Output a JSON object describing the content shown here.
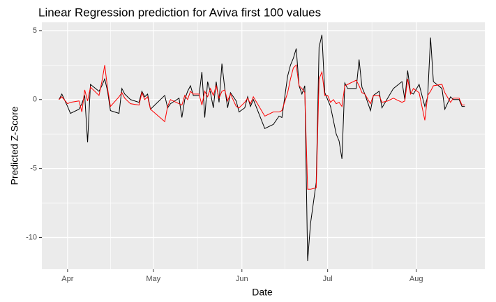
{
  "chart_data": {
    "type": "line",
    "title": "Linear Regression prediction for Aviva first 100 values",
    "x_label": "Date",
    "y_label": "Predicted Z-Score",
    "x": [
      -3,
      -2,
      0,
      1,
      4,
      5,
      6,
      7,
      8,
      11,
      12,
      13,
      14,
      15,
      18,
      19,
      20,
      22,
      25,
      26,
      27,
      28,
      29,
      34,
      35,
      36,
      39,
      40,
      41,
      42,
      43,
      44,
      46,
      47,
      48,
      49,
      50,
      51,
      52,
      53,
      54,
      55,
      56,
      57,
      59,
      60,
      62,
      63,
      64,
      65,
      69,
      72,
      74,
      75,
      77,
      78,
      79,
      80,
      81,
      82,
      83,
      84,
      85,
      87,
      88,
      89,
      90,
      91,
      92,
      93,
      94,
      95,
      96,
      97,
      98,
      101,
      102,
      103,
      104,
      106,
      107,
      109,
      110,
      112,
      114,
      117,
      118,
      119,
      120,
      121,
      123,
      125,
      126,
      127,
      128,
      131,
      132,
      134,
      135,
      137,
      138,
      139
    ],
    "series": [
      {
        "color": "#000000",
        "values": [
          0.0,
          0.4,
          -0.5,
          -1.0,
          -0.7,
          -0.3,
          0.3,
          -3.1,
          1.1,
          0.6,
          1.0,
          1.5,
          0.6,
          -0.8,
          -1.0,
          0.8,
          0.4,
          0.0,
          -0.2,
          0.6,
          0.2,
          0.4,
          -0.7,
          0.3,
          -0.6,
          -0.3,
          0.1,
          -1.3,
          0.0,
          0.6,
          1.0,
          0.3,
          0.3,
          2.0,
          -1.3,
          1.3,
          0.5,
          -0.6,
          1.3,
          -0.2,
          2.6,
          0.8,
          -0.6,
          0.5,
          -0.1,
          -0.9,
          -0.6,
          0.2,
          -0.5,
          0.0,
          -2.1,
          -1.8,
          -1.2,
          -1.3,
          1.7,
          2.5,
          3.0,
          3.7,
          1.0,
          0.4,
          1.0,
          -11.7,
          -9.0,
          -6.0,
          3.8,
          4.7,
          0.5,
          0.0,
          -0.5,
          -1.5,
          -2.5,
          -3.0,
          -4.3,
          1.2,
          0.8,
          0.8,
          2.9,
          0.9,
          0.4,
          -0.8,
          0.3,
          0.6,
          -0.6,
          0.1,
          0.8,
          1.3,
          0.0,
          2.1,
          0.5,
          0.4,
          1.1,
          -0.5,
          0.2,
          4.5,
          1.3,
          0.8,
          -0.7,
          0.2,
          0.0,
          0.0,
          -0.5,
          -0.5
        ]
      },
      {
        "color": "#ff0000",
        "values": [
          0.0,
          0.2,
          -0.3,
          -0.2,
          -0.1,
          -0.9,
          0.7,
          -0.1,
          0.9,
          0.3,
          1.3,
          2.5,
          0.8,
          -0.5,
          0.2,
          0.5,
          0.1,
          -0.3,
          -0.4,
          0.5,
          0.0,
          0.2,
          -0.7,
          -1.6,
          -0.5,
          0.0,
          -0.3,
          -0.4,
          0.3,
          0.0,
          0.6,
          0.4,
          0.4,
          -0.4,
          0.6,
          0.2,
          0.8,
          0.3,
          1.0,
          0.1,
          0.6,
          0.7,
          -0.1,
          0.4,
          -0.5,
          -0.6,
          -0.2,
          0.1,
          -0.3,
          0.2,
          -1.2,
          -0.9,
          -0.9,
          -0.8,
          0.5,
          1.5,
          2.3,
          2.5,
          1.0,
          0.8,
          0.5,
          -6.5,
          -6.5,
          -6.4,
          1.5,
          2.0,
          0.3,
          0.3,
          -0.2,
          0.0,
          -0.3,
          -0.2,
          -0.5,
          1.0,
          1.1,
          1.4,
          1.0,
          0.5,
          0.4,
          -0.3,
          0.3,
          0.3,
          -0.2,
          -0.1,
          0.1,
          -0.2,
          -0.1,
          1.5,
          0.4,
          0.8,
          0.5,
          -1.5,
          0.3,
          0.6,
          1.0,
          1.1,
          0.5,
          -0.2,
          0.1,
          0.1,
          -0.4,
          -0.4
        ]
      }
    ],
    "xlim": [
      -9,
      146
    ],
    "xticks": [
      {
        "value": 0,
        "label": "Apr"
      },
      {
        "value": 30,
        "label": "May"
      },
      {
        "value": 61,
        "label": "Jun"
      },
      {
        "value": 91,
        "label": "Jul"
      },
      {
        "value": 122,
        "label": "Aug"
      }
    ],
    "ylim": [
      -12.3,
      5.6
    ],
    "yticks": [
      5,
      0,
      -5,
      -10
    ],
    "grid": true
  }
}
